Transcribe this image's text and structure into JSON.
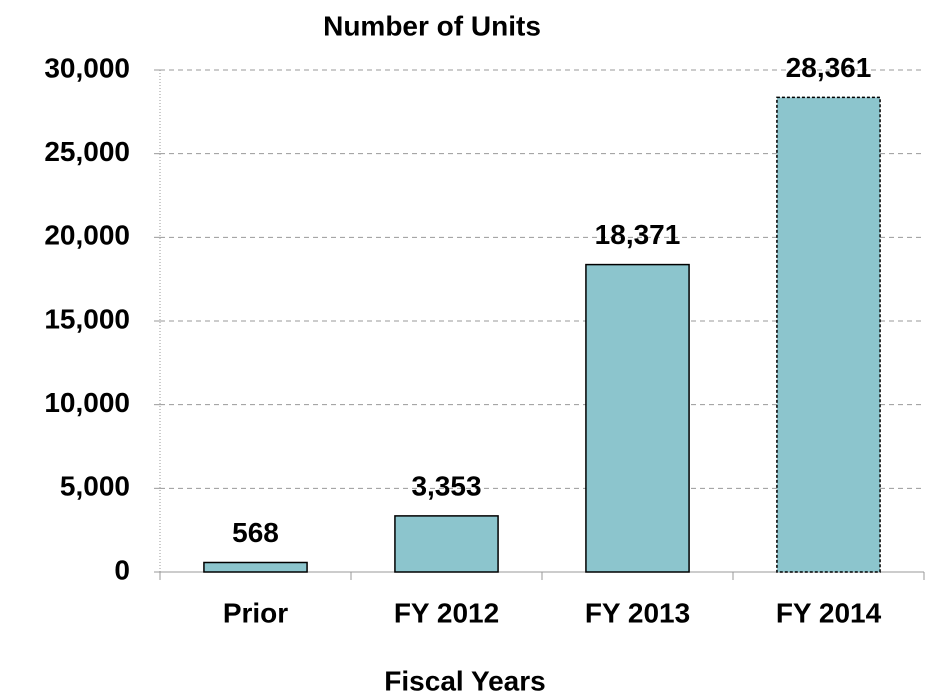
{
  "chart_data": {
    "type": "bar",
    "title": "Number of Units",
    "x_label": "Fiscal Years",
    "categories": [
      "Prior",
      "FY 2012",
      "FY 2013",
      "FY 2014"
    ],
    "values": [
      568,
      3353,
      18371,
      28361
    ],
    "value_labels": [
      "568",
      "3,353",
      "18,371",
      "28,361"
    ],
    "color": "#8cc5cd",
    "bar_borders": [
      "solid",
      "solid",
      "solid",
      "dashed"
    ],
    "ylim": [
      0,
      30000
    ],
    "yticks": [
      0,
      {
        "value": 5000,
        "label": "5,000"
      },
      {
        "value": 10000,
        "label": "10,000"
      },
      {
        "value": 15000,
        "label": "15,000"
      },
      {
        "value": 20000,
        "label": "20,000"
      },
      {
        "value": 25000,
        "label": "25,000"
      },
      {
        "value": 30000,
        "label": "30,000"
      }
    ],
    "grid": true
  }
}
